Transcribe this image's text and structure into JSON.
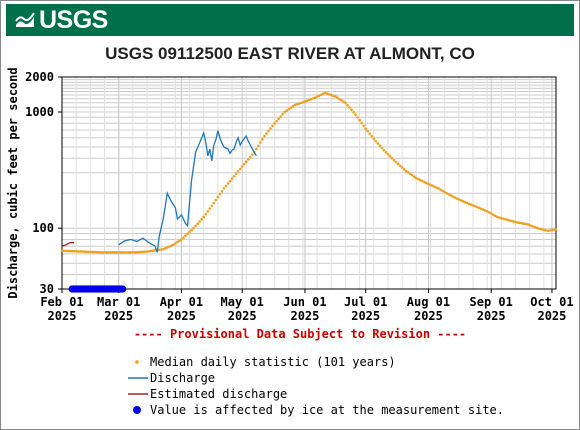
{
  "logo": {
    "text": "USGS"
  },
  "title": "USGS 09112500 EAST RIVER AT ALMONT, CO",
  "provisional_note": "---- Provisional Data Subject to Revision ----",
  "legend": [
    {
      "label": "Median daily statistic (101 years)",
      "symbol": "dot",
      "color": "#f0a020"
    },
    {
      "label": "Discharge",
      "symbol": "line",
      "color": "#1f77b4"
    },
    {
      "label": "Estimated discharge",
      "symbol": "line",
      "color": "#aa2222"
    },
    {
      "label": "Value is affected by ice at the measurement site.",
      "symbol": "blue-dot",
      "color": "#0000ee"
    }
  ],
  "chart_data": {
    "type": "line",
    "title": "USGS 09112500 EAST RIVER AT ALMONT, CO",
    "ylabel": "Discharge, cubic feet per second",
    "xlabel": "",
    "yscale": "log",
    "ylim": [
      30,
      2000
    ],
    "ytick_labels": [
      "30",
      "100",
      "1000",
      "2000"
    ],
    "ytick_values": [
      30,
      100,
      1000,
      2000
    ],
    "xtick_labels": [
      {
        "month": "Feb 01",
        "year": "2025"
      },
      {
        "month": "Mar 01",
        "year": "2025"
      },
      {
        "month": "Apr 01",
        "year": "2025"
      },
      {
        "month": "May 01",
        "year": "2025"
      },
      {
        "month": "Jun 01",
        "year": "2025"
      },
      {
        "month": "Jul 01",
        "year": "2025"
      },
      {
        "month": "Aug 01",
        "year": "2025"
      },
      {
        "month": "Sep 01",
        "year": "2025"
      },
      {
        "month": "Oct 01",
        "year": "2025"
      }
    ],
    "xtick_days": [
      0,
      28,
      59,
      89,
      120,
      150,
      181,
      212,
      242
    ],
    "xlim_days": [
      0,
      244
    ],
    "grid": true,
    "series": [
      {
        "name": "Median daily statistic (101 years)",
        "color": "#f0a020",
        "x_days": [
          0,
          10,
          20,
          28,
          35,
          42,
          50,
          55,
          59,
          65,
          70,
          75,
          80,
          85,
          89,
          95,
          100,
          105,
          110,
          115,
          120,
          125,
          130,
          135,
          140,
          145,
          150,
          155,
          160,
          165,
          170,
          175,
          181,
          186,
          190,
          195,
          200,
          205,
          210,
          215,
          220,
          225,
          230,
          235,
          240,
          244
        ],
        "y": [
          64,
          63,
          62,
          62,
          62,
          63,
          66,
          72,
          80,
          100,
          125,
          165,
          220,
          280,
          340,
          450,
          620,
          800,
          1000,
          1150,
          1230,
          1330,
          1460,
          1360,
          1200,
          950,
          720,
          560,
          450,
          370,
          310,
          270,
          240,
          220,
          200,
          180,
          165,
          152,
          140,
          125,
          118,
          112,
          108,
          100,
          95,
          98
        ]
      },
      {
        "name": "Discharge",
        "color": "#1f77b4",
        "x_days": [
          28,
          31,
          34,
          37,
          40,
          43,
          46,
          47,
          48,
          50,
          52,
          54,
          56,
          57,
          59,
          61,
          62,
          64,
          66,
          69,
          70,
          71,
          72,
          73,
          74,
          75,
          76,
          77,
          78,
          79,
          80,
          82,
          83,
          84,
          85,
          86,
          87,
          88,
          89,
          91,
          92,
          93,
          94,
          96
        ],
        "y": [
          72,
          78,
          80,
          77,
          82,
          75,
          70,
          62,
          85,
          120,
          200,
          170,
          150,
          120,
          130,
          110,
          105,
          260,
          450,
          600,
          660,
          550,
          420,
          480,
          380,
          520,
          580,
          690,
          600,
          540,
          500,
          480,
          440,
          470,
          480,
          550,
          600,
          520,
          560,
          620,
          560,
          520,
          480,
          420
        ]
      },
      {
        "name": "Estimated discharge",
        "color": "#aa2222",
        "x_days": [
          0,
          2,
          4,
          6
        ],
        "y": [
          70,
          72,
          75,
          75
        ]
      }
    ],
    "ice_affected_days": [
      5,
      30
    ]
  }
}
